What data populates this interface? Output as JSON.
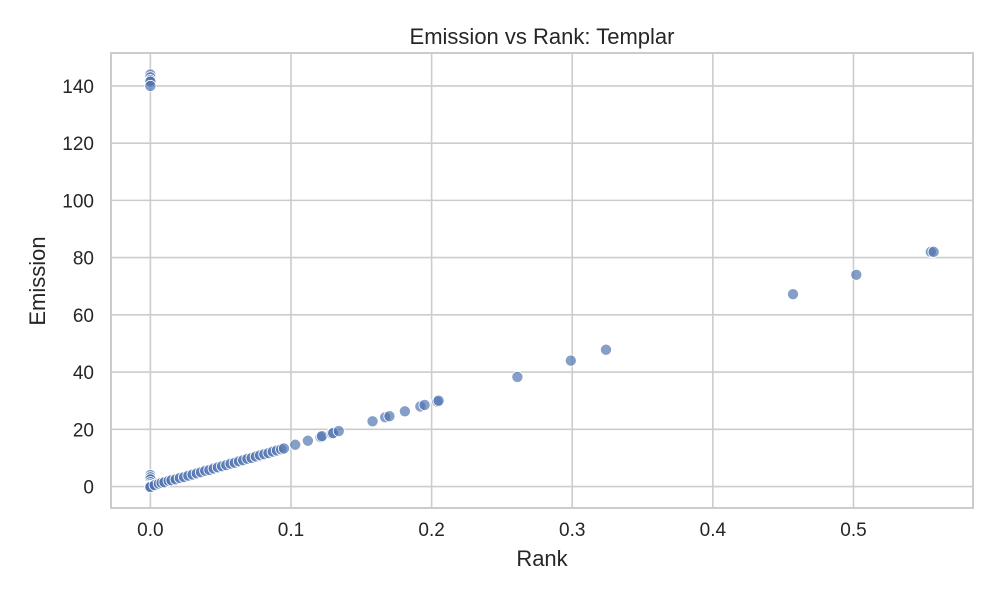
{
  "chart_data": {
    "type": "scatter",
    "title": "Emission vs Rank: Templar",
    "xlabel": "Rank",
    "ylabel": "Emission",
    "xlim": [
      -0.028,
      0.585
    ],
    "ylim": [
      -7.5,
      151.5
    ],
    "xticks": [
      0.0,
      0.1,
      0.2,
      0.3,
      0.4,
      0.5
    ],
    "xtick_labels": [
      "0.0",
      "0.1",
      "0.2",
      "0.3",
      "0.4",
      "0.5"
    ],
    "yticks": [
      0,
      20,
      40,
      60,
      80,
      100,
      120,
      140
    ],
    "ytick_labels": [
      "0",
      "20",
      "40",
      "60",
      "80",
      "100",
      "120",
      "140"
    ],
    "grid": true,
    "color": "#4c72b0",
    "points": [
      [
        0.0,
        144.0
      ],
      [
        0.0,
        143.0
      ],
      [
        0.0,
        142.0
      ],
      [
        0.0,
        141.5
      ],
      [
        0.0,
        140.0
      ],
      [
        0.0,
        4.0
      ],
      [
        0.0,
        3.2
      ],
      [
        0.0,
        2.5
      ],
      [
        0.0,
        1.5
      ],
      [
        0.0,
        0.8
      ],
      [
        0.0,
        0.3
      ],
      [
        0.0,
        0.0
      ],
      [
        0.0,
        -0.2
      ],
      [
        0.003,
        0.5
      ],
      [
        0.006,
        1.0
      ],
      [
        0.008,
        1.3
      ],
      [
        0.01,
        1.5
      ],
      [
        0.013,
        2.0
      ],
      [
        0.015,
        2.2
      ],
      [
        0.018,
        2.5
      ],
      [
        0.021,
        3.0
      ],
      [
        0.024,
        3.3
      ],
      [
        0.027,
        3.8
      ],
      [
        0.03,
        4.2
      ],
      [
        0.033,
        4.6
      ],
      [
        0.036,
        5.0
      ],
      [
        0.039,
        5.5
      ],
      [
        0.042,
        5.8
      ],
      [
        0.045,
        6.3
      ],
      [
        0.048,
        6.7
      ],
      [
        0.051,
        7.1
      ],
      [
        0.054,
        7.5
      ],
      [
        0.057,
        8.0
      ],
      [
        0.06,
        8.3
      ],
      [
        0.063,
        8.8
      ],
      [
        0.066,
        9.2
      ],
      [
        0.069,
        9.7
      ],
      [
        0.072,
        10.0
      ],
      [
        0.075,
        10.5
      ],
      [
        0.078,
        10.9
      ],
      [
        0.081,
        11.3
      ],
      [
        0.084,
        11.7
      ],
      [
        0.087,
        12.2
      ],
      [
        0.09,
        12.6
      ],
      [
        0.093,
        13.0
      ],
      [
        0.095,
        13.3
      ],
      [
        0.103,
        14.6
      ],
      [
        0.112,
        16.0
      ],
      [
        0.121,
        17.3
      ],
      [
        0.122,
        17.6
      ],
      [
        0.129,
        18.5
      ],
      [
        0.13,
        18.7
      ],
      [
        0.134,
        19.4
      ],
      [
        0.158,
        22.8
      ],
      [
        0.167,
        24.2
      ],
      [
        0.17,
        24.6
      ],
      [
        0.181,
        26.3
      ],
      [
        0.192,
        28.0
      ],
      [
        0.195,
        28.5
      ],
      [
        0.204,
        29.7
      ],
      [
        0.205,
        30.0
      ],
      [
        0.261,
        38.3
      ],
      [
        0.299,
        44.0
      ],
      [
        0.324,
        47.8
      ],
      [
        0.457,
        67.2
      ],
      [
        0.502,
        74.0
      ],
      [
        0.555,
        82.0
      ],
      [
        0.557,
        82.0
      ]
    ]
  }
}
